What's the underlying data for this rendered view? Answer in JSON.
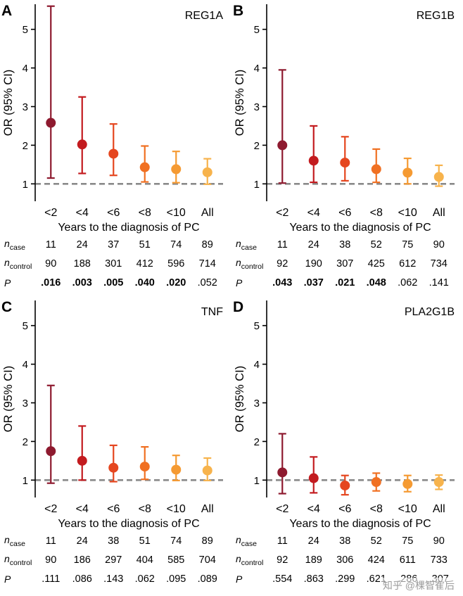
{
  "watermark": {
    "text": "知乎 @棵智隺后"
  },
  "chart_data": {
    "type": "errorbar",
    "y_label": "OR (95% CI)",
    "x_label": "Years to the diagnosis of PC",
    "categories": [
      "<2",
      "<4",
      "<6",
      "<8",
      "<10",
      "All"
    ],
    "y_ticks": [
      1,
      2,
      3,
      4,
      5
    ],
    "ylim": [
      0.55,
      5.65
    ],
    "ref_line": 1,
    "ref_color": "#8a8a8a",
    "colors": [
      "#8E1A2F",
      "#C31B1F",
      "#E5461F",
      "#F07022",
      "#F59A32",
      "#F7B34C"
    ],
    "table_rows": [
      {
        "label": "n",
        "sub": "case",
        "italic": true,
        "key": "n_case"
      },
      {
        "label": "n",
        "sub": "control",
        "italic": true,
        "key": "n_control"
      },
      {
        "label": "P",
        "sub": "",
        "italic": true,
        "key": "p"
      }
    ],
    "panels": [
      {
        "letter": "A",
        "gene": "REG1A",
        "or": [
          2.58,
          2.02,
          1.78,
          1.43,
          1.38,
          1.3
        ],
        "lo": [
          1.15,
          1.27,
          1.22,
          1.05,
          1.03,
          0.99
        ],
        "hi": [
          5.6,
          3.25,
          2.55,
          1.98,
          1.84,
          1.65
        ],
        "n_case": [
          "11",
          "24",
          "37",
          "51",
          "74",
          "89"
        ],
        "n_control": [
          "90",
          "188",
          "301",
          "412",
          "596",
          "714"
        ],
        "p": [
          ".016",
          ".003",
          ".005",
          ".040",
          ".020",
          ".052"
        ],
        "p_bold": [
          true,
          true,
          true,
          true,
          true,
          false
        ]
      },
      {
        "letter": "B",
        "gene": "REG1B",
        "or": [
          2.0,
          1.6,
          1.55,
          1.38,
          1.29,
          1.18
        ],
        "lo": [
          1.02,
          1.04,
          1.08,
          1.04,
          1.0,
          0.94
        ],
        "hi": [
          3.95,
          2.5,
          2.22,
          1.9,
          1.66,
          1.48
        ],
        "n_case": [
          "11",
          "24",
          "38",
          "52",
          "75",
          "90"
        ],
        "n_control": [
          "92",
          "190",
          "307",
          "425",
          "612",
          "734"
        ],
        "p": [
          ".043",
          ".037",
          ".021",
          ".048",
          ".062",
          ".141"
        ],
        "p_bold": [
          true,
          true,
          true,
          true,
          false,
          false
        ]
      },
      {
        "letter": "C",
        "gene": "TNF",
        "or": [
          1.75,
          1.5,
          1.32,
          1.35,
          1.27,
          1.25
        ],
        "lo": [
          0.92,
          1.0,
          0.96,
          1.02,
          0.99,
          0.99
        ],
        "hi": [
          3.45,
          2.4,
          1.9,
          1.86,
          1.64,
          1.57
        ],
        "n_case": [
          "11",
          "24",
          "38",
          "51",
          "74",
          "89"
        ],
        "n_control": [
          "90",
          "186",
          "297",
          "404",
          "585",
          "704"
        ],
        "p": [
          ".111",
          ".086",
          ".143",
          ".062",
          ".095",
          ".089"
        ],
        "p_bold": [
          false,
          false,
          false,
          false,
          false,
          false
        ]
      },
      {
        "letter": "D",
        "gene": "PLA2G1B",
        "or": [
          1.2,
          1.05,
          0.86,
          0.95,
          0.9,
          0.95
        ],
        "lo": [
          0.65,
          0.67,
          0.62,
          0.72,
          0.7,
          0.76
        ],
        "hi": [
          2.2,
          1.6,
          1.12,
          1.18,
          1.12,
          1.13
        ],
        "n_case": [
          "11",
          "24",
          "38",
          "52",
          "75",
          "90"
        ],
        "n_control": [
          "92",
          "189",
          "306",
          "424",
          "611",
          "733"
        ],
        "p": [
          ".554",
          ".863",
          ".299",
          ".621",
          ".286",
          ".307"
        ],
        "p_bold": [
          false,
          false,
          false,
          false,
          false,
          false
        ]
      }
    ]
  }
}
